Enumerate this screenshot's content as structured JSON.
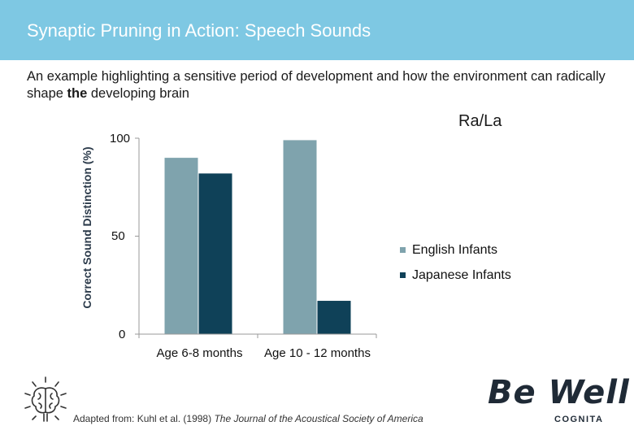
{
  "header": {
    "title": "Synaptic Pruning in Action: Speech Sounds"
  },
  "subtitle": {
    "text_1": "An example highlighting a sensitive period of development and how the environment can radically shape ",
    "bold": "the",
    "text_2": " developing brain"
  },
  "colors": {
    "english": "#7fa3ad",
    "japanese": "#0f4158",
    "header_bg": "#7ec8e3"
  },
  "chart_data": {
    "type": "bar",
    "title": "Ra/La",
    "ylabel": "Correct Sound Distinction (%)",
    "xlabel": "",
    "ylim": [
      0,
      100
    ],
    "yticks": [
      0,
      50,
      100
    ],
    "grid": false,
    "categories": [
      "Age 6-8 months",
      "Age 10 - 12 months"
    ],
    "series": [
      {
        "name": "English Infants",
        "values": [
          90,
          99
        ]
      },
      {
        "name": "Japanese Infants",
        "values": [
          82,
          17
        ]
      }
    ],
    "legend": "right"
  },
  "icons": {
    "brain": "brain-icon"
  },
  "citation": {
    "prefix": "Adapted from: Kuhl et al. (1998) ",
    "journal": "The Journal of the Acoustical Society of America"
  },
  "logo": {
    "main": "Be Well",
    "sub": "COGNITA"
  }
}
